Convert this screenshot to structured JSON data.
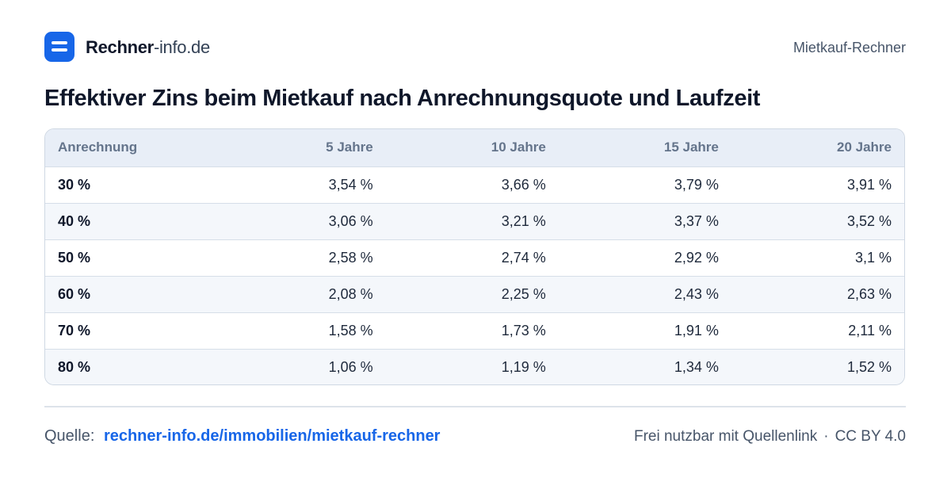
{
  "header": {
    "brand_bold": "Rechner",
    "brand_light": "-info.de",
    "right_label": "Mietkauf-Rechner"
  },
  "title": "Effektiver Zins beim Mietkauf nach Anrechnungsquote und Laufzeit",
  "footer": {
    "source_label": "Quelle:",
    "source_link": "rechner-info.de/immobilien/mietkauf-rechner",
    "license_text": "Frei nutzbar mit Quellenlink",
    "separator": "·",
    "license": "CC BY 4.0"
  },
  "colors": {
    "accent": "#1766e8",
    "header_bg": "#e8eef7",
    "stripe_bg": "#f4f7fb"
  },
  "chart_data": {
    "type": "table",
    "title": "Effektiver Zins beim Mietkauf nach Anrechnungsquote und Laufzeit",
    "columns": [
      "Anrechnung",
      "5 Jahre",
      "10 Jahre",
      "15 Jahre",
      "20 Jahre"
    ],
    "rows": [
      [
        "30 %",
        "3,54 %",
        "3,66 %",
        "3,79 %",
        "3,91 %"
      ],
      [
        "40 %",
        "3,06 %",
        "3,21 %",
        "3,37 %",
        "3,52 %"
      ],
      [
        "50 %",
        "2,58 %",
        "2,74 %",
        "2,92 %",
        "3,1 %"
      ],
      [
        "60 %",
        "2,08 %",
        "2,25 %",
        "2,43 %",
        "2,63 %"
      ],
      [
        "70 %",
        "1,58 %",
        "1,73 %",
        "1,91 %",
        "2,11 %"
      ],
      [
        "80 %",
        "1,06 %",
        "1,19 %",
        "1,34 %",
        "1,52 %"
      ]
    ]
  }
}
